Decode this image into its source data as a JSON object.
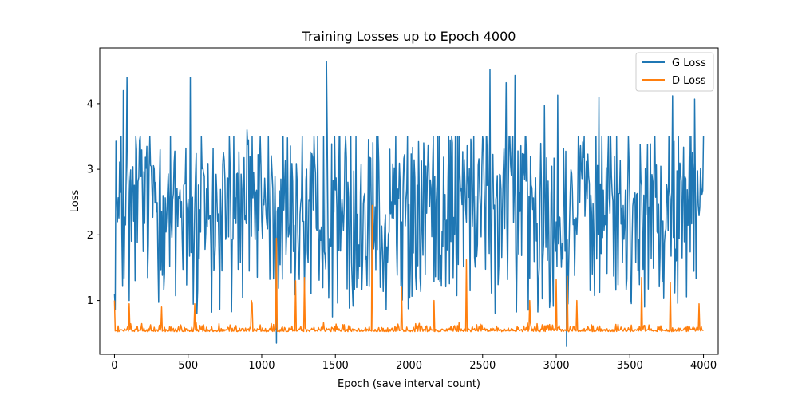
{
  "chart_data": {
    "type": "line",
    "title": "Training Losses up to Epoch 4000",
    "xlabel": "Epoch (save interval count)",
    "ylabel": "Loss",
    "xlim": [
      -100,
      4100
    ],
    "ylim": [
      0.18,
      4.85
    ],
    "x_ticks": [
      0,
      500,
      1000,
      1500,
      2000,
      2500,
      3000,
      3500,
      4000
    ],
    "y_ticks": [
      1,
      2,
      3,
      4
    ],
    "grid": false,
    "legend_position": "top-right",
    "series": [
      {
        "name": "G Loss",
        "color": "#1f77b4",
        "generator": {
          "x_start": 0,
          "x_end": 4000,
          "step": 5,
          "baseline": 2.5,
          "noise_amplitude": 0.85,
          "clip": [
            0.3,
            3.5
          ],
          "spikes": [
            {
              "x": 0,
              "y": 1.1
            },
            {
              "x": 45,
              "y": 3.5
            },
            {
              "x": 60,
              "y": 4.2
            },
            {
              "x": 85,
              "y": 4.4
            },
            {
              "x": 100,
              "y": 1.0
            },
            {
              "x": 150,
              "y": 3.3
            },
            {
              "x": 310,
              "y": 3.3
            },
            {
              "x": 515,
              "y": 4.4
            },
            {
              "x": 560,
              "y": 0.8
            },
            {
              "x": 900,
              "y": 3.6
            },
            {
              "x": 1100,
              "y": 0.35
            },
            {
              "x": 1440,
              "y": 4.64
            },
            {
              "x": 1480,
              "y": 0.75
            },
            {
              "x": 2550,
              "y": 4.52
            },
            {
              "x": 2660,
              "y": 4.32
            },
            {
              "x": 2720,
              "y": 4.43
            },
            {
              "x": 2920,
              "y": 3.97
            },
            {
              "x": 3010,
              "y": 4.13
            },
            {
              "x": 3070,
              "y": 0.3
            },
            {
              "x": 3290,
              "y": 4.1
            },
            {
              "x": 3600,
              "y": 0.9
            },
            {
              "x": 3790,
              "y": 4.12
            },
            {
              "x": 3940,
              "y": 4.07
            },
            {
              "x": 4000,
              "y": 3.5
            }
          ]
        }
      },
      {
        "name": "D Loss",
        "color": "#ff7f0e",
        "generator": {
          "x_start": 0,
          "x_end": 4000,
          "step": 5,
          "baseline": 0.55,
          "noise_amplitude": 0.07,
          "clip": [
            0.42,
            2.5
          ],
          "spikes": [
            {
              "x": 0,
              "y": 1.0
            },
            {
              "x": 100,
              "y": 0.95
            },
            {
              "x": 320,
              "y": 0.9
            },
            {
              "x": 545,
              "y": 0.95
            },
            {
              "x": 930,
              "y": 1.0
            },
            {
              "x": 935,
              "y": 0.95
            },
            {
              "x": 1100,
              "y": 1.95
            },
            {
              "x": 1230,
              "y": 1.3
            },
            {
              "x": 1290,
              "y": 1.35
            },
            {
              "x": 1750,
              "y": 2.45
            },
            {
              "x": 1950,
              "y": 1.2
            },
            {
              "x": 2170,
              "y": 1.0
            },
            {
              "x": 2390,
              "y": 1.62
            },
            {
              "x": 2820,
              "y": 1.0
            },
            {
              "x": 3000,
              "y": 1.32
            },
            {
              "x": 3075,
              "y": 1.37
            },
            {
              "x": 3140,
              "y": 1.0
            },
            {
              "x": 3580,
              "y": 1.35
            },
            {
              "x": 3775,
              "y": 1.27
            },
            {
              "x": 3970,
              "y": 0.95
            }
          ]
        }
      }
    ]
  }
}
